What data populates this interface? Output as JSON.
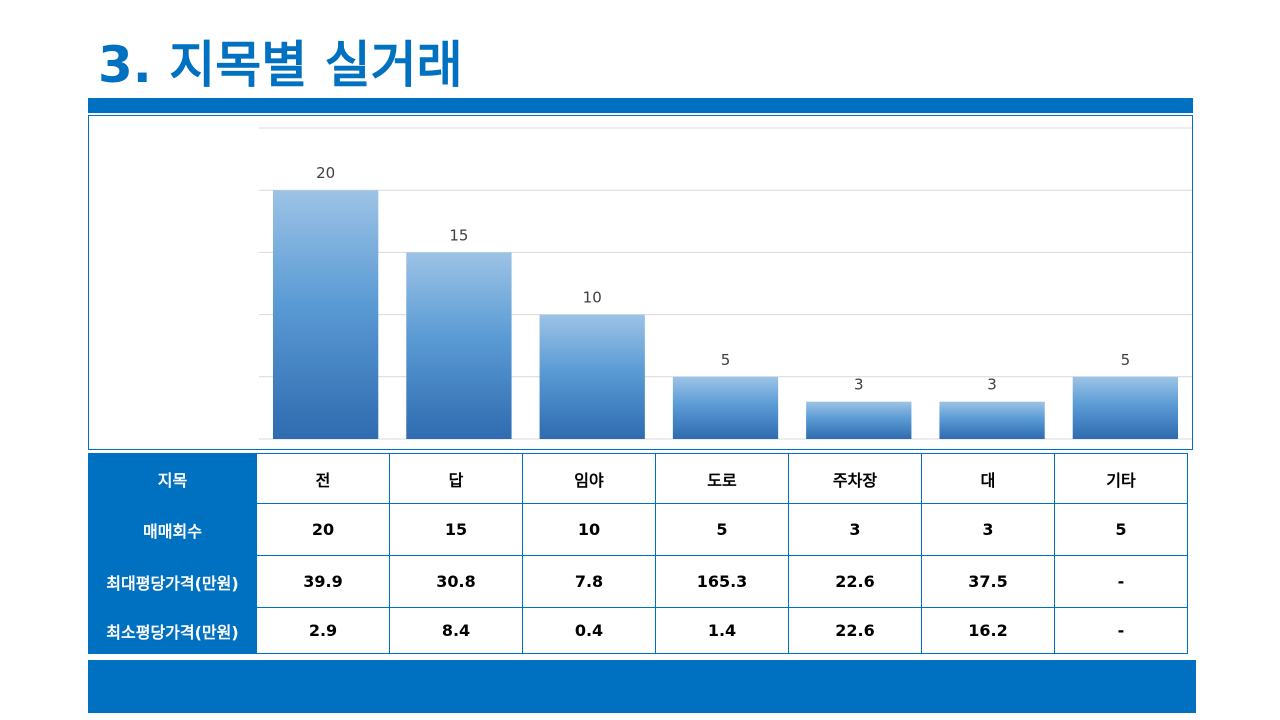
{
  "page": {
    "title": "3. 지목별 실거래",
    "accent_color": "#0070C0"
  },
  "chart_data": {
    "type": "bar",
    "categories": [
      "전",
      "답",
      "임야",
      "도로",
      "주차장",
      "대",
      "기타"
    ],
    "values": [
      20,
      15,
      10,
      5,
      3,
      3,
      5
    ],
    "ylim": [
      0,
      25
    ],
    "grid": true,
    "bar_gradient": [
      "#9DC3E6",
      "#2E6BB0"
    ]
  },
  "table": {
    "rows": [
      {
        "header": "지목",
        "cells": [
          "전",
          "답",
          "임야",
          "도로",
          "주차장",
          "대",
          "기타"
        ]
      },
      {
        "header": "매매회수",
        "cells": [
          "20",
          "15",
          "10",
          "5",
          "3",
          "3",
          "5"
        ]
      },
      {
        "header": "최대평당가격(만원)",
        "cells": [
          "39.9",
          "30.8",
          "7.8",
          "165.3",
          "22.6",
          "37.5",
          "-"
        ]
      },
      {
        "header": "최소평당가격(만원)",
        "cells": [
          "2.9",
          "8.4",
          "0.4",
          "1.4",
          "22.6",
          "16.2",
          "-"
        ]
      }
    ]
  }
}
